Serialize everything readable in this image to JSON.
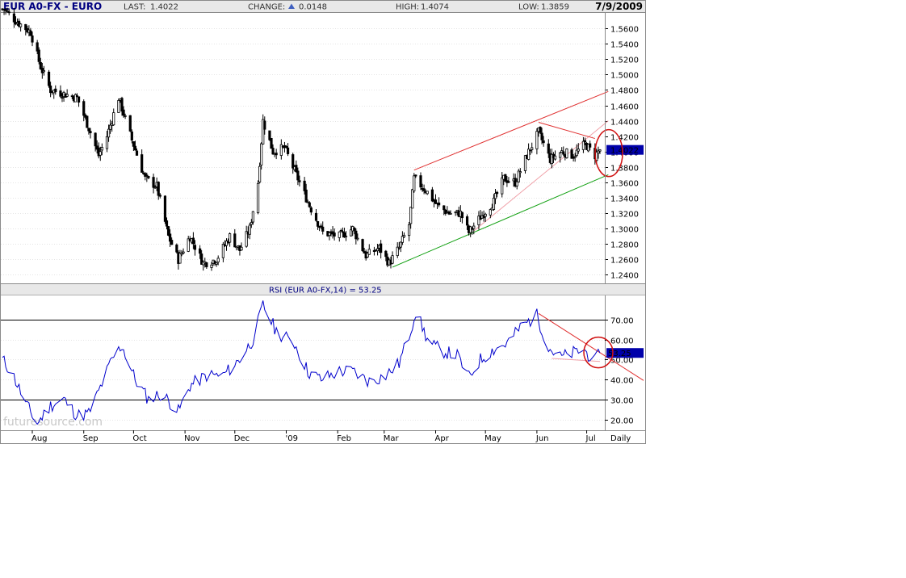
{
  "header": {
    "symbol": "EUR A0-FX - EURO",
    "last_label": "LAST:",
    "last_value": "1.4022",
    "change_label": "CHANGE:",
    "change_value": "0.0148",
    "high_label": "HIGH:",
    "high_value": "1.4074",
    "low_label": "LOW:",
    "low_value": "1.3859",
    "date": "7/9/2009"
  },
  "colors": {
    "price_bars": "#000000",
    "rsi_line": "#0000cc",
    "upper_channel": "#e03030",
    "lower_channel": "#10a010",
    "pink_trend": "#f0a0a8",
    "circle": "#d01010",
    "last_box": "#0000aa"
  },
  "price_axis": {
    "ticks": [
      "1.5600",
      "1.5400",
      "1.5200",
      "1.5000",
      "1.4800",
      "1.4600",
      "1.4400",
      "1.4200",
      "1.4000",
      "1.3800",
      "1.3600",
      "1.3400",
      "1.3200",
      "1.3000",
      "1.2800",
      "1.2600",
      "1.2400"
    ],
    "last_marker": "1.4022"
  },
  "rsi": {
    "title": "RSI (EUR A0-FX,14) = 53.25",
    "ticks": [
      "70.00",
      "60.00",
      "50.00",
      "40.00",
      "30.00",
      "20.00"
    ],
    "last_marker": "53.25"
  },
  "x_axis": {
    "labels": [
      "Aug",
      "Sep",
      "Oct",
      "Nov",
      "Dec",
      "'09",
      "Feb",
      "Mar",
      "Apr",
      "May",
      "Jun",
      "Jul"
    ],
    "period": "Daily"
  },
  "watermark": "futuresource.com",
  "chart_data": [
    {
      "type": "candlestick",
      "title": "EUR A0-FX - EURO",
      "period": "Daily",
      "x_range": [
        "2008-07-14",
        "2009-07-09"
      ],
      "ylim": [
        1.23,
        1.58
      ],
      "grid": true,
      "close_anchors": [
        {
          "date": "2008-07-15",
          "close": 1.585
        },
        {
          "date": "2008-07-22",
          "close": 1.57
        },
        {
          "date": "2008-07-31",
          "close": 1.555
        },
        {
          "date": "2008-08-06",
          "close": 1.51
        },
        {
          "date": "2008-08-12",
          "close": 1.48
        },
        {
          "date": "2008-08-20",
          "close": 1.475
        },
        {
          "date": "2008-08-28",
          "close": 1.47
        },
        {
          "date": "2008-09-05",
          "close": 1.425
        },
        {
          "date": "2008-09-10",
          "close": 1.395
        },
        {
          "date": "2008-09-15",
          "close": 1.42
        },
        {
          "date": "2008-09-22",
          "close": 1.47
        },
        {
          "date": "2008-09-30",
          "close": 1.415
        },
        {
          "date": "2008-10-08",
          "close": 1.365
        },
        {
          "date": "2008-10-15",
          "close": 1.355
        },
        {
          "date": "2008-10-22",
          "close": 1.29
        },
        {
          "date": "2008-10-28",
          "close": 1.26
        },
        {
          "date": "2008-11-04",
          "close": 1.29
        },
        {
          "date": "2008-11-12",
          "close": 1.255
        },
        {
          "date": "2008-11-20",
          "close": 1.26
        },
        {
          "date": "2008-11-28",
          "close": 1.29
        },
        {
          "date": "2008-12-04",
          "close": 1.272
        },
        {
          "date": "2008-12-10",
          "close": 1.3
        },
        {
          "date": "2008-12-15",
          "close": 1.36
        },
        {
          "date": "2008-12-18",
          "close": 1.44
        },
        {
          "date": "2008-12-24",
          "close": 1.4
        },
        {
          "date": "2008-12-31",
          "close": 1.405
        },
        {
          "date": "2009-01-08",
          "close": 1.365
        },
        {
          "date": "2009-01-15",
          "close": 1.33
        },
        {
          "date": "2009-01-23",
          "close": 1.295
        },
        {
          "date": "2009-02-02",
          "close": 1.29
        },
        {
          "date": "2009-02-10",
          "close": 1.3
        },
        {
          "date": "2009-02-18",
          "close": 1.265
        },
        {
          "date": "2009-02-26",
          "close": 1.275
        },
        {
          "date": "2009-03-04",
          "close": 1.255
        },
        {
          "date": "2009-03-10",
          "close": 1.275
        },
        {
          "date": "2009-03-16",
          "close": 1.305
        },
        {
          "date": "2009-03-19",
          "close": 1.365
        },
        {
          "date": "2009-03-26",
          "close": 1.35
        },
        {
          "date": "2009-04-02",
          "close": 1.33
        },
        {
          "date": "2009-04-09",
          "close": 1.32
        },
        {
          "date": "2009-04-16",
          "close": 1.32
        },
        {
          "date": "2009-04-21",
          "close": 1.295
        },
        {
          "date": "2009-04-28",
          "close": 1.315
        },
        {
          "date": "2009-05-06",
          "close": 1.335
        },
        {
          "date": "2009-05-12",
          "close": 1.365
        },
        {
          "date": "2009-05-19",
          "close": 1.36
        },
        {
          "date": "2009-05-26",
          "close": 1.395
        },
        {
          "date": "2009-06-02",
          "close": 1.425
        },
        {
          "date": "2009-06-09",
          "close": 1.39
        },
        {
          "date": "2009-06-16",
          "close": 1.4
        },
        {
          "date": "2009-06-23",
          "close": 1.395
        },
        {
          "date": "2009-06-30",
          "close": 1.41
        },
        {
          "date": "2009-07-06",
          "close": 1.395
        },
        {
          "date": "2009-07-09",
          "close": 1.4022
        }
      ]
    },
    {
      "type": "line",
      "title": "RSI (EUR A0-FX,14) = 53.25",
      "x_range": [
        "2008-07-14",
        "2009-07-09"
      ],
      "ylim": [
        15,
        82
      ],
      "reference_lines": [
        30,
        70
      ],
      "series": [
        {
          "name": "RSI (EUR A0-FX,14)",
          "points": [
            {
              "date": "2008-07-14",
              "value": 50
            },
            {
              "date": "2008-07-20",
              "value": 43
            },
            {
              "date": "2008-07-28",
              "value": 28
            },
            {
              "date": "2008-08-04",
              "value": 18
            },
            {
              "date": "2008-08-12",
              "value": 27
            },
            {
              "date": "2008-08-20",
              "value": 30
            },
            {
              "date": "2008-08-28",
              "value": 22
            },
            {
              "date": "2008-09-04",
              "value": 23
            },
            {
              "date": "2008-09-10",
              "value": 34
            },
            {
              "date": "2008-09-18",
              "value": 50
            },
            {
              "date": "2008-09-24",
              "value": 57
            },
            {
              "date": "2008-10-02",
              "value": 40
            },
            {
              "date": "2008-10-10",
              "value": 30
            },
            {
              "date": "2008-10-18",
              "value": 33
            },
            {
              "date": "2008-10-28",
              "value": 24
            },
            {
              "date": "2008-11-04",
              "value": 37
            },
            {
              "date": "2008-11-14",
              "value": 42
            },
            {
              "date": "2008-11-24",
              "value": 42
            },
            {
              "date": "2008-12-04",
              "value": 50
            },
            {
              "date": "2008-12-12",
              "value": 60
            },
            {
              "date": "2008-12-18",
              "value": 77
            },
            {
              "date": "2008-12-26",
              "value": 64
            },
            {
              "date": "2009-01-06",
              "value": 58
            },
            {
              "date": "2009-01-14",
              "value": 44
            },
            {
              "date": "2009-01-22",
              "value": 40
            },
            {
              "date": "2009-02-02",
              "value": 44
            },
            {
              "date": "2009-02-10",
              "value": 44
            },
            {
              "date": "2009-02-20",
              "value": 39
            },
            {
              "date": "2009-03-02",
              "value": 42
            },
            {
              "date": "2009-03-10",
              "value": 48
            },
            {
              "date": "2009-03-16",
              "value": 62
            },
            {
              "date": "2009-03-20",
              "value": 74
            },
            {
              "date": "2009-03-28",
              "value": 58
            },
            {
              "date": "2009-04-06",
              "value": 54
            },
            {
              "date": "2009-04-14",
              "value": 52
            },
            {
              "date": "2009-04-21",
              "value": 41
            },
            {
              "date": "2009-04-28",
              "value": 50
            },
            {
              "date": "2009-05-06",
              "value": 55
            },
            {
              "date": "2009-05-14",
              "value": 58
            },
            {
              "date": "2009-05-22",
              "value": 66
            },
            {
              "date": "2009-06-01",
              "value": 72
            },
            {
              "date": "2009-06-08",
              "value": 56
            },
            {
              "date": "2009-06-15",
              "value": 51
            },
            {
              "date": "2009-06-22",
              "value": 53
            },
            {
              "date": "2009-06-29",
              "value": 55
            },
            {
              "date": "2009-07-06",
              "value": 49
            },
            {
              "date": "2009-07-09",
              "value": 53.25
            }
          ]
        }
      ]
    }
  ]
}
